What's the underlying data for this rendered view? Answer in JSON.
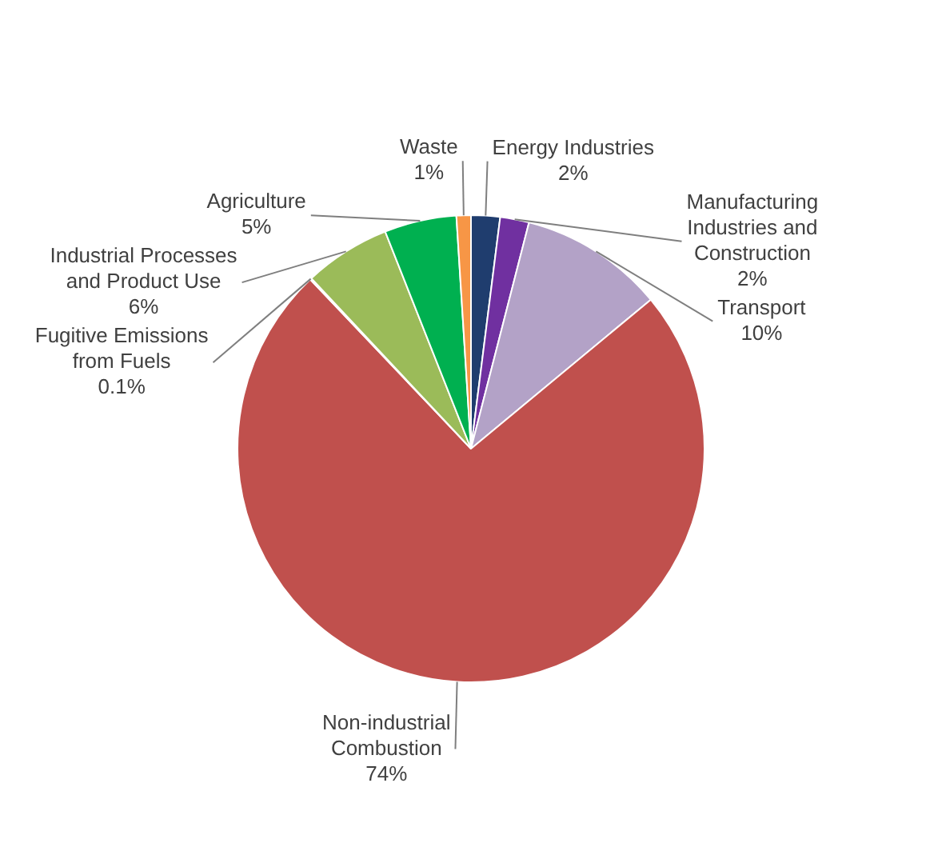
{
  "chart_data": {
    "type": "pie",
    "categories": [
      "Energy Industries",
      "Manufacturing Industries and Construction",
      "Transport",
      "Non-industrial Combustion",
      "Fugitive Emissions from Fuels",
      "Industrial Processes and Product Use",
      "Agriculture",
      "Waste"
    ],
    "values": [
      2,
      2,
      10,
      74,
      0.1,
      6,
      5,
      1
    ],
    "value_labels": [
      "2%",
      "2%",
      "10%",
      "74%",
      "0.1%",
      "6%",
      "5%",
      "1%"
    ],
    "colors": [
      "#1f3d6e",
      "#7030a0",
      "#b3a2c7",
      "#c0504d",
      "#4bacc6",
      "#9bbb59",
      "#00b050",
      "#f79646"
    ],
    "legend": false
  }
}
